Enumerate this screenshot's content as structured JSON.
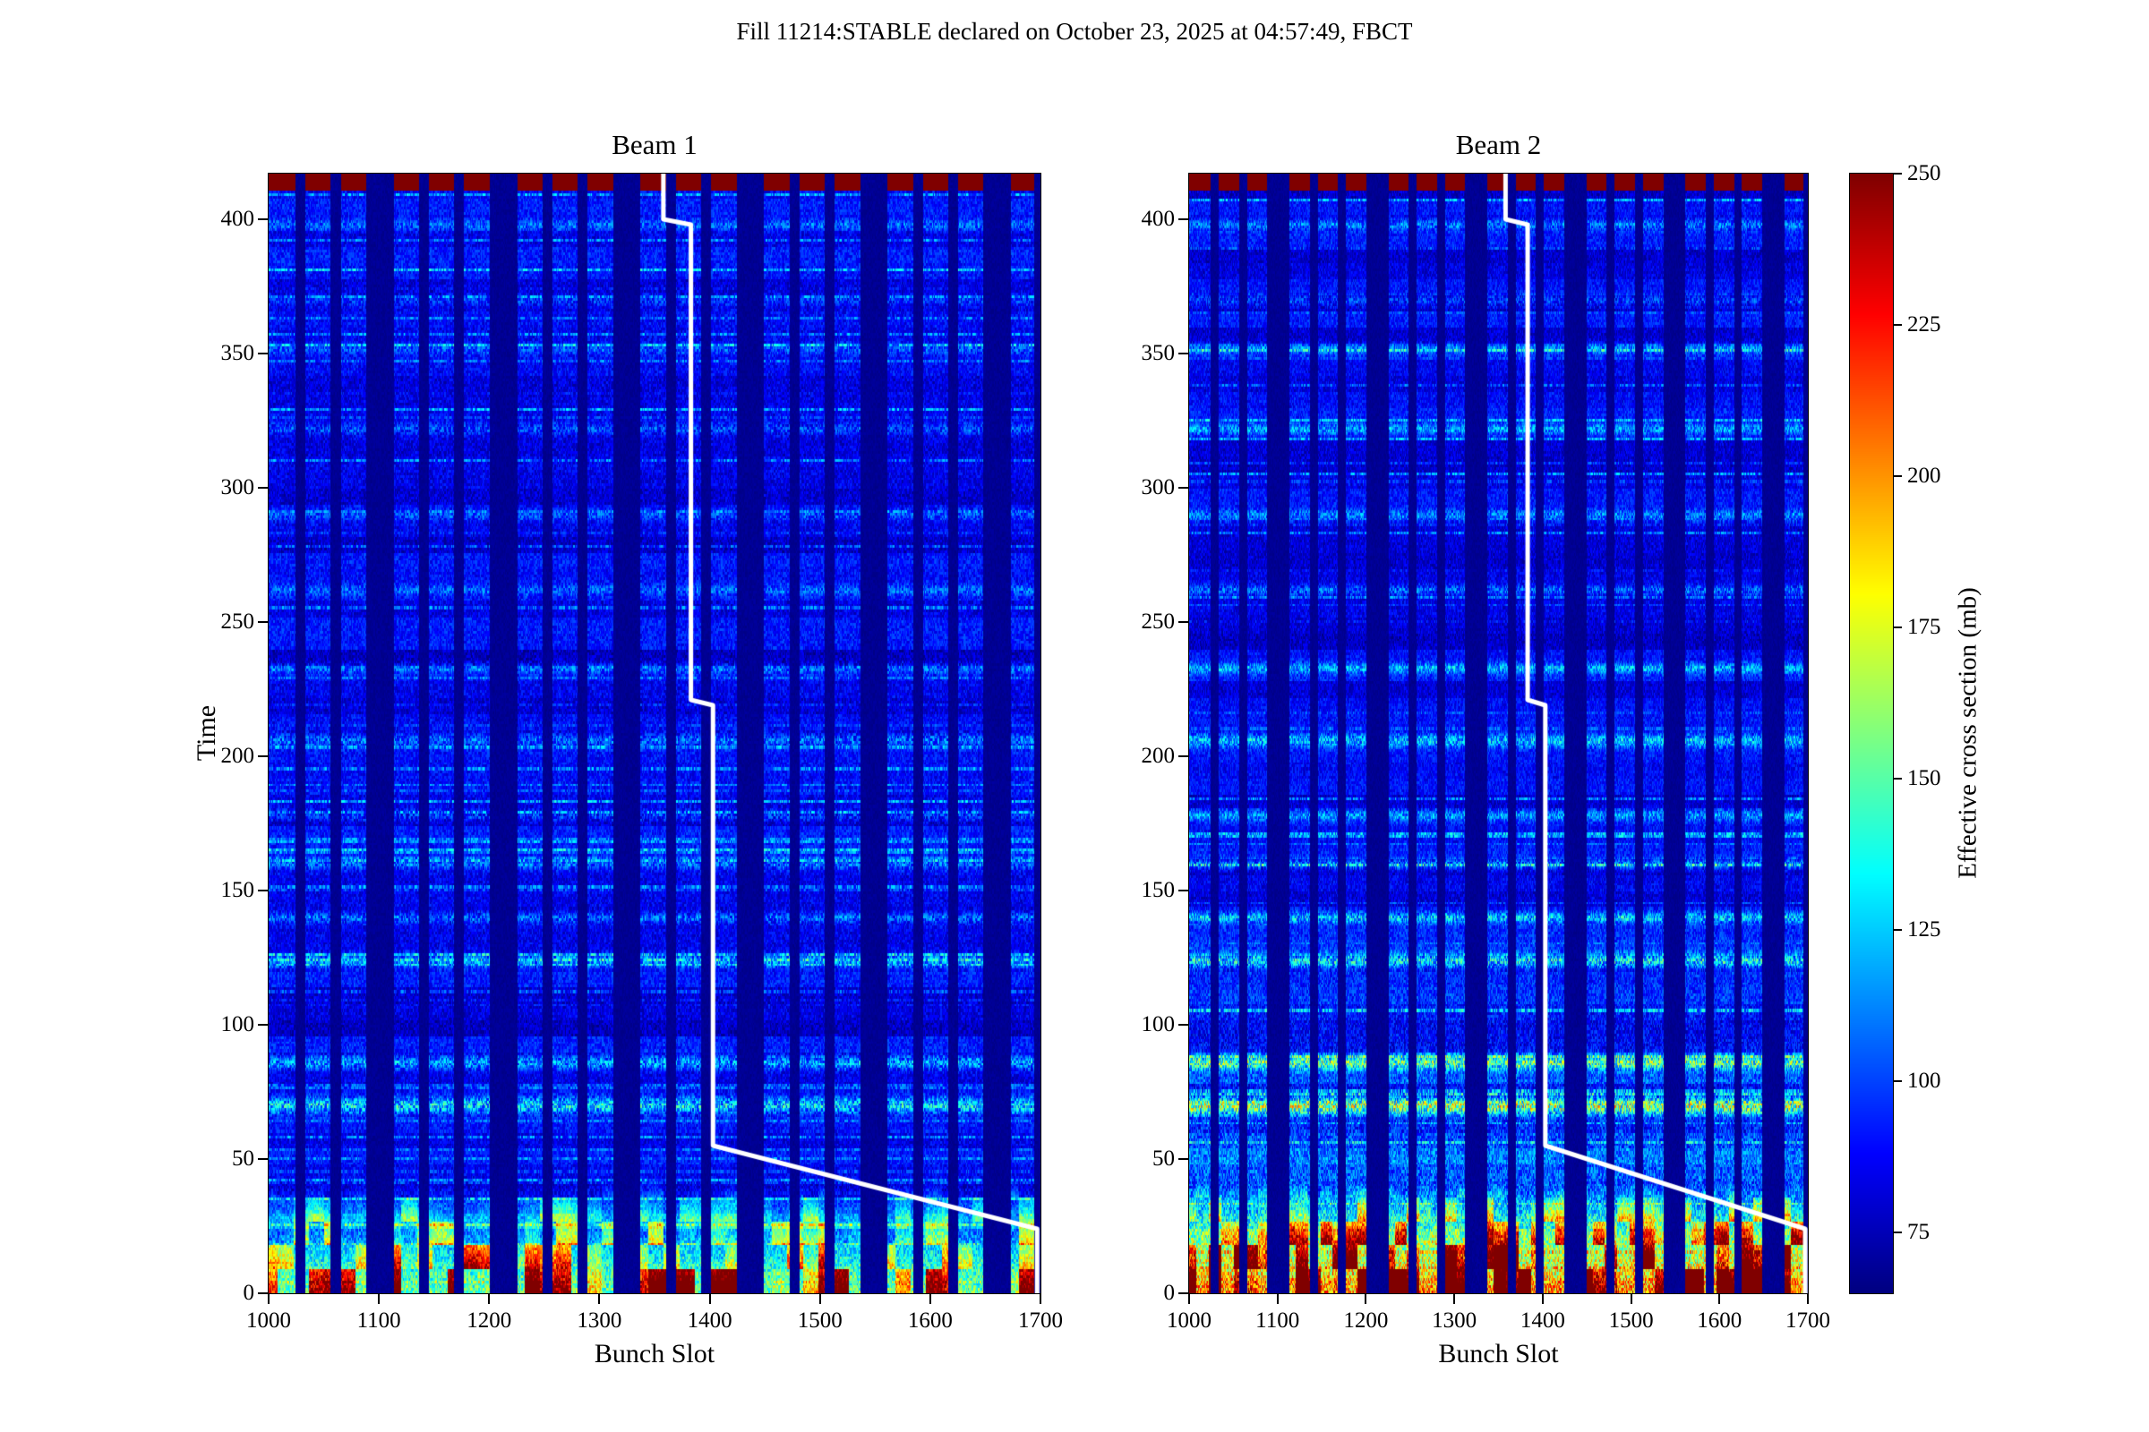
{
  "figure": {
    "background": "#ffffff"
  },
  "chart_data": {
    "type": "heatmap",
    "title": "Fill 11214:STABLE declared on October 23, 2025 at 04:57:49, FBCT",
    "xlabel": "Bunch Slot",
    "ylabel": "Time",
    "x_range": [
      1000,
      1700
    ],
    "y_range": [
      0,
      417
    ],
    "x_ticks": [
      1000,
      1100,
      1200,
      1300,
      1400,
      1500,
      1600,
      1700
    ],
    "y_ticks": [
      0,
      50,
      100,
      150,
      200,
      250,
      300,
      350,
      400
    ],
    "colormap": "jet",
    "colorbar": {
      "label": "Effective cross section (mb)",
      "ticks": [
        75,
        100,
        125,
        150,
        175,
        200,
        225,
        250
      ],
      "vmin": 65,
      "vmax": 250
    },
    "subplots": [
      {
        "title": "Beam 1",
        "seed": 11,
        "heat_scale": 0.85,
        "hot_scale": 1.0,
        "low_time_boost": 0
      },
      {
        "title": "Beam 2",
        "seed": 22,
        "heat_scale": 1.25,
        "hot_scale": 1.3,
        "low_time_boost": 26
      }
    ],
    "gap_ranges": [
      [
        1024,
        1032
      ],
      [
        1056,
        1064
      ],
      [
        1088,
        1112
      ],
      [
        1136,
        1144
      ],
      [
        1168,
        1176
      ],
      [
        1200,
        1224
      ],
      [
        1248,
        1256
      ],
      [
        1280,
        1288
      ],
      [
        1312,
        1336
      ],
      [
        1360,
        1368
      ],
      [
        1392,
        1400
      ],
      [
        1424,
        1448
      ],
      [
        1472,
        1480
      ],
      [
        1504,
        1512
      ],
      [
        1536,
        1560
      ],
      [
        1584,
        1592
      ],
      [
        1616,
        1624
      ],
      [
        1648,
        1672
      ],
      [
        1694,
        1700
      ]
    ],
    "background_value": 66,
    "base_value": 82,
    "hot_region": {
      "time_max": 42,
      "base_boost": 55,
      "cluster_boost": 150
    },
    "top_band": {
      "time_min": 411,
      "value": 255
    },
    "streak_rows": [
      {
        "t": 70,
        "s": 55,
        "w": 3
      },
      {
        "t": 86,
        "s": 42,
        "w": 2.5
      },
      {
        "t": 124,
        "s": 38,
        "w": 2.5
      },
      {
        "t": 140,
        "s": 30,
        "w": 2
      },
      {
        "t": 160,
        "s": 26,
        "w": 2
      },
      {
        "t": 178,
        "s": 22,
        "w": 2
      },
      {
        "t": 206,
        "s": 30,
        "w": 2.5
      },
      {
        "t": 233,
        "s": 24,
        "w": 2
      },
      {
        "t": 262,
        "s": 20,
        "w": 2
      },
      {
        "t": 290,
        "s": 18,
        "w": 2
      },
      {
        "t": 322,
        "s": 22,
        "w": 2
      },
      {
        "t": 352,
        "s": 18,
        "w": 2
      },
      {
        "t": 370,
        "s": 16,
        "w": 2
      },
      {
        "t": 398,
        "s": 20,
        "w": 2
      }
    ],
    "overlay_line": {
      "color": "#ffffff",
      "width": 5,
      "points": [
        [
          1358,
          417
        ],
        [
          1358,
          400
        ],
        [
          1383,
          398
        ],
        [
          1383,
          221
        ],
        [
          1403,
          219
        ],
        [
          1403,
          55
        ],
        [
          1697,
          24
        ],
        [
          1697,
          0
        ]
      ]
    }
  }
}
